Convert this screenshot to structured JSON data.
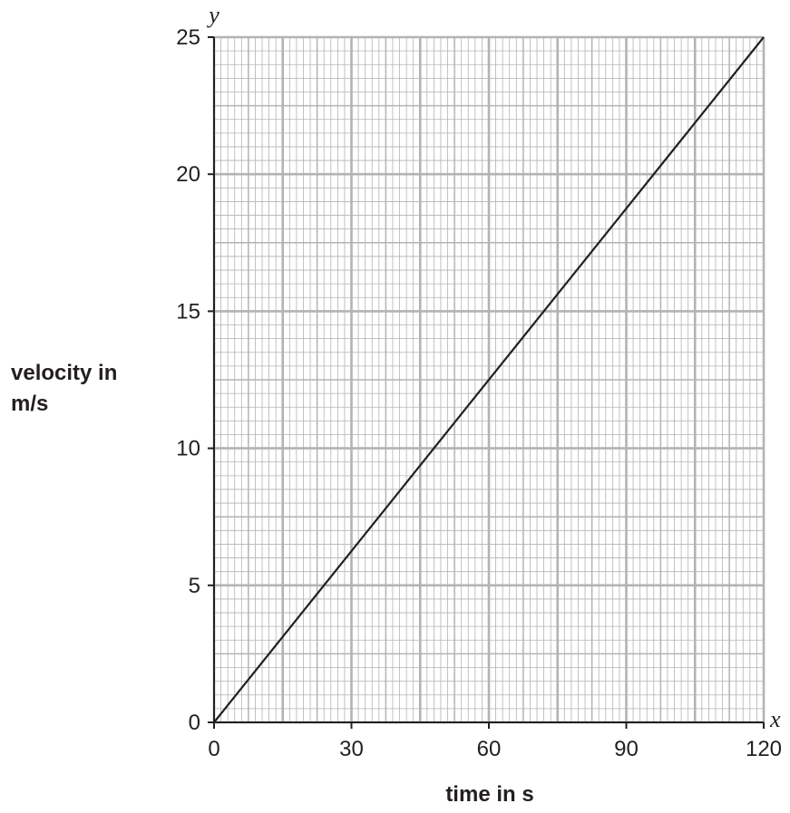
{
  "chart_data": {
    "type": "line",
    "x_var": "x",
    "y_var": "y",
    "xlabel": "time in s",
    "ylabel_lines": [
      "velocity in",
      "m/s"
    ],
    "xlim": [
      0,
      120
    ],
    "ylim": [
      0,
      25
    ],
    "x_ticks": [
      "0",
      "30",
      "60",
      "90",
      "120"
    ],
    "y_ticks": [
      "0",
      "5",
      "10",
      "15",
      "20",
      "25"
    ],
    "grid": true,
    "series": [
      {
        "x": [
          0,
          120
        ],
        "y": [
          0,
          25
        ],
        "color": "#231f20"
      }
    ]
  }
}
